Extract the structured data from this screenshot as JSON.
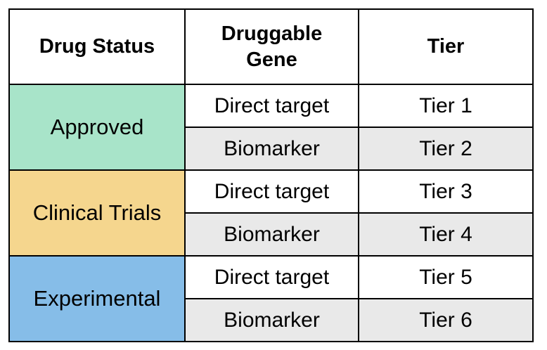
{
  "header": {
    "drug_status": "Drug Status",
    "druggable_gene_line1": "Druggable",
    "druggable_gene_line2": "Gene",
    "tier": "Tier"
  },
  "groups": [
    {
      "status": "Approved",
      "color": "#a8e4c9",
      "rows": [
        {
          "gene": "Direct target",
          "tier": "Tier 1"
        },
        {
          "gene": "Biomarker",
          "tier": "Tier 2"
        }
      ]
    },
    {
      "status": "Clinical Trials",
      "color": "#f5d68e",
      "rows": [
        {
          "gene": "Direct target",
          "tier": "Tier 3"
        },
        {
          "gene": "Biomarker",
          "tier": "Tier 4"
        }
      ]
    },
    {
      "status": "Experimental",
      "color": "#86bde8",
      "rows": [
        {
          "gene": "Direct target",
          "tier": "Tier 5"
        },
        {
          "gene": "Biomarker",
          "tier": "Tier 6"
        }
      ]
    }
  ],
  "colors": {
    "alt_row": "#e9e9e9",
    "border": "#000000"
  }
}
